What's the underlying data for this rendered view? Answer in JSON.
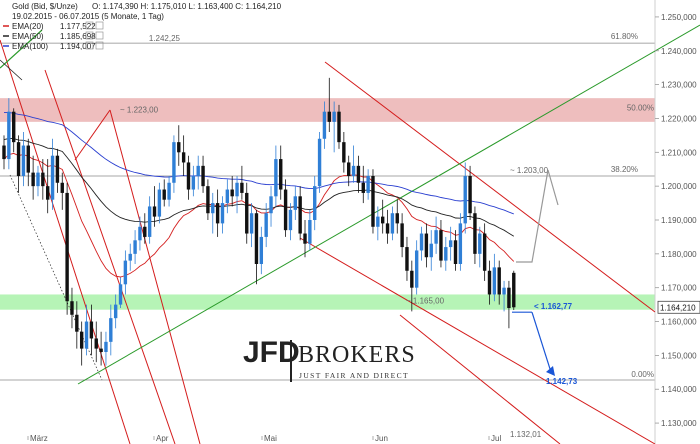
{
  "header": {
    "title": "Gold (Bid, $/Unze)",
    "ohlc": "O: 1.174,390  H: 1.175,010  L: 1.163,400  C: 1.164,210",
    "range": "19.02.2015 - 06.07.2015 (5 Monate, 1 Tag)",
    "legend": [
      {
        "name": "EMA(20)",
        "value": "1.177,522",
        "color": "#d42020"
      },
      {
        "name": "EMA(50)",
        "value": "1.185,698",
        "color": "#222222"
      },
      {
        "name": "EMA(100)",
        "value": "1.194,007",
        "color": "#2a3fd0"
      }
    ]
  },
  "brand": {
    "name_left": "JFD",
    "name_right": "BROKERS",
    "tagline": "JUST FAIR AND DIRECT"
  },
  "colors": {
    "up": "#2f7fd6",
    "down": "#111111",
    "ema20": "#d42020",
    "ema50": "#222222",
    "ema100": "#2a3fd0",
    "channel": "#d41c1c",
    "trend": "#2a9a2a",
    "resistance_zone": "#e8a8a8",
    "support_zone": "#9ef09e",
    "projection": "#999999",
    "target": "#1a56d6"
  },
  "chart_data": {
    "type": "candlestick",
    "instrument": "Gold (Bid, $/Unze)",
    "period": "19.02.2015 - 06.07.2015",
    "x_ticks": [
      "März",
      "Apr",
      "Mai",
      "Jun",
      "Jul"
    ],
    "y_ticks": [
      "1.250,000",
      "1.240,000",
      "1.230,000",
      "1.220,000",
      "1.210,000",
      "1.200,000",
      "1.190,000",
      "1.180,000",
      "1.170,000",
      "1.160,000",
      "1.150,000",
      "1.140,000",
      "1.130,000"
    ],
    "ylim": [
      1125,
      1255
    ],
    "candles": [
      [
        1212,
        1215,
        1205,
        1208
      ],
      [
        1208,
        1226,
        1205,
        1222
      ],
      [
        1222,
        1223,
        1210,
        1213
      ],
      [
        1213,
        1215,
        1198,
        1203
      ],
      [
        1203,
        1216,
        1200,
        1212
      ],
      [
        1212,
        1214,
        1200,
        1204
      ],
      [
        1204,
        1209,
        1196,
        1200
      ],
      [
        1200,
        1206,
        1197,
        1204
      ],
      [
        1204,
        1208,
        1196,
        1200
      ],
      [
        1200,
        1208,
        1192,
        1196
      ],
      [
        1196,
        1214,
        1193,
        1209
      ],
      [
        1209,
        1211,
        1198,
        1201
      ],
      [
        1201,
        1204,
        1193,
        1198
      ],
      [
        1198,
        1201,
        1162,
        1166
      ],
      [
        1166,
        1170,
        1158,
        1162
      ],
      [
        1162,
        1166,
        1152,
        1157
      ],
      [
        1157,
        1160,
        1147,
        1152
      ],
      [
        1152,
        1165,
        1150,
        1160
      ],
      [
        1160,
        1165,
        1150,
        1155
      ],
      [
        1155,
        1160,
        1148,
        1152
      ],
      [
        1152,
        1157,
        1147,
        1151
      ],
      [
        1151,
        1157,
        1147,
        1154
      ],
      [
        1154,
        1165,
        1150,
        1161
      ],
      [
        1161,
        1168,
        1158,
        1165
      ],
      [
        1165,
        1173,
        1164,
        1171
      ],
      [
        1171,
        1181,
        1168,
        1178
      ],
      [
        1178,
        1183,
        1175,
        1180
      ],
      [
        1180,
        1187,
        1177,
        1184
      ],
      [
        1184,
        1191,
        1181,
        1188
      ],
      [
        1188,
        1192,
        1183,
        1185
      ],
      [
        1185,
        1197,
        1183,
        1194
      ],
      [
        1194,
        1200,
        1188,
        1191
      ],
      [
        1191,
        1201,
        1189,
        1199
      ],
      [
        1199,
        1202,
        1194,
        1196
      ],
      [
        1196,
        1203,
        1194,
        1201
      ],
      [
        1201,
        1215,
        1198,
        1213
      ],
      [
        1213,
        1218,
        1206,
        1210
      ],
      [
        1210,
        1215,
        1203,
        1207
      ],
      [
        1207,
        1209,
        1196,
        1199
      ],
      [
        1199,
        1206,
        1197,
        1203
      ],
      [
        1203,
        1209,
        1199,
        1206
      ],
      [
        1206,
        1209,
        1198,
        1200
      ],
      [
        1200,
        1202,
        1190,
        1192
      ],
      [
        1192,
        1198,
        1186,
        1195
      ],
      [
        1195,
        1199,
        1185,
        1189
      ],
      [
        1189,
        1197,
        1186,
        1195
      ],
      [
        1195,
        1202,
        1192,
        1199
      ],
      [
        1199,
        1203,
        1194,
        1197
      ],
      [
        1197,
        1203,
        1192,
        1201
      ],
      [
        1201,
        1206,
        1196,
        1198
      ],
      [
        1198,
        1201,
        1183,
        1186
      ],
      [
        1186,
        1195,
        1182,
        1192
      ],
      [
        1192,
        1193,
        1171,
        1177
      ],
      [
        1177,
        1188,
        1174,
        1185
      ],
      [
        1185,
        1195,
        1182,
        1192
      ],
      [
        1192,
        1200,
        1188,
        1197
      ],
      [
        1197,
        1212,
        1194,
        1208
      ],
      [
        1208,
        1212,
        1196,
        1199
      ],
      [
        1199,
        1202,
        1185,
        1187
      ],
      [
        1187,
        1195,
        1184,
        1193
      ],
      [
        1193,
        1200,
        1190,
        1197
      ],
      [
        1197,
        1200,
        1184,
        1186
      ],
      [
        1186,
        1190,
        1179,
        1183
      ],
      [
        1183,
        1193,
        1181,
        1190
      ],
      [
        1190,
        1203,
        1187,
        1200
      ],
      [
        1200,
        1216,
        1198,
        1214
      ],
      [
        1214,
        1225,
        1211,
        1222
      ],
      [
        1222,
        1232,
        1216,
        1219
      ],
      [
        1219,
        1225,
        1210,
        1222
      ],
      [
        1222,
        1224,
        1211,
        1213
      ],
      [
        1213,
        1216,
        1204,
        1207
      ],
      [
        1207,
        1209,
        1200,
        1203
      ],
      [
        1203,
        1212,
        1201,
        1206
      ],
      [
        1206,
        1209,
        1198,
        1201
      ],
      [
        1201,
        1206,
        1195,
        1198
      ],
      [
        1198,
        1205,
        1196,
        1203
      ],
      [
        1203,
        1205,
        1186,
        1188
      ],
      [
        1188,
        1194,
        1184,
        1191
      ],
      [
        1191,
        1196,
        1186,
        1189
      ],
      [
        1189,
        1193,
        1183,
        1186
      ],
      [
        1186,
        1194,
        1184,
        1192
      ],
      [
        1192,
        1196,
        1186,
        1189
      ],
      [
        1189,
        1192,
        1179,
        1182
      ],
      [
        1182,
        1185,
        1172,
        1175
      ],
      [
        1175,
        1178,
        1163,
        1170
      ],
      [
        1170,
        1184,
        1168,
        1181
      ],
      [
        1181,
        1188,
        1178,
        1186
      ],
      [
        1186,
        1189,
        1176,
        1179
      ],
      [
        1179,
        1187,
        1175,
        1183
      ],
      [
        1183,
        1191,
        1180,
        1187
      ],
      [
        1187,
        1190,
        1176,
        1178
      ],
      [
        1178,
        1185,
        1175,
        1182
      ],
      [
        1182,
        1188,
        1178,
        1184
      ],
      [
        1184,
        1187,
        1175,
        1177
      ],
      [
        1177,
        1192,
        1175,
        1189
      ],
      [
        1189,
        1207,
        1186,
        1203
      ],
      [
        1203,
        1206,
        1190,
        1192
      ],
      [
        1192,
        1194,
        1177,
        1180
      ],
      [
        1180,
        1188,
        1176,
        1186
      ],
      [
        1186,
        1189,
        1172,
        1175
      ],
      [
        1175,
        1178,
        1165,
        1168
      ],
      [
        1168,
        1180,
        1166,
        1176
      ],
      [
        1176,
        1178,
        1165,
        1168
      ],
      [
        1168,
        1172,
        1163,
        1170
      ],
      [
        1170,
        1172,
        1158,
        1164
      ],
      [
        1174.39,
        1175.01,
        1163.4,
        1164.21
      ]
    ],
    "series": [
      {
        "name": "EMA(20)",
        "last": 1177.522
      },
      {
        "name": "EMA(50)",
        "last": 1185.698
      },
      {
        "name": "EMA(100)",
        "last": 1194.007
      }
    ],
    "levels": [
      {
        "label": "61.80%",
        "value": 1242.25
      },
      {
        "label": "1.242,25",
        "value": 1242.25
      },
      {
        "label": "~ 1.223,00",
        "value": 1223
      },
      {
        "label": "50.00%",
        "value": 1221.5
      },
      {
        "label": "~ 1.203,00",
        "value": 1203
      },
      {
        "label": "38.20%",
        "value": 1203
      },
      {
        "label": "~ 1.165,00",
        "value": 1165
      },
      {
        "label": "< 1.162,77",
        "value": 1162.77
      },
      {
        "label": "1.142,73",
        "value": 1142.73
      },
      {
        "label": "0.00%",
        "value": 1142.73
      },
      {
        "label": "1.132,01",
        "value": 1132.01
      }
    ],
    "zones": [
      {
        "name": "resistance",
        "from": 1219,
        "to": 1226
      },
      {
        "name": "support",
        "from": 1163.5,
        "to": 1168
      }
    ],
    "current_price": "1.164,210"
  }
}
